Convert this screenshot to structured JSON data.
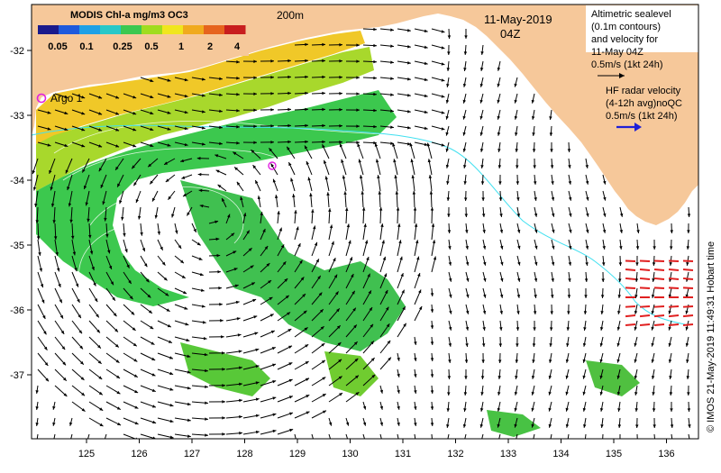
{
  "colorbar": {
    "title": "MODIS Chl-a mg/m3 OC3",
    "ticks": [
      "0.05",
      "0.1",
      "0.25",
      "0.5",
      "1",
      "2",
      "4"
    ],
    "colors": [
      "#1a1a8c",
      "#1e5adc",
      "#1ea0e6",
      "#28c8c8",
      "#3cc850",
      "#a0dc1e",
      "#f0e61e",
      "#f0aa1e",
      "#e6641e",
      "#c81e1e"
    ]
  },
  "depth_label": "200m",
  "date_label": "11-May-2019",
  "time_label": "04Z",
  "altimetry_legend": {
    "lines": [
      "Altimetric sealevel",
      "(0.1m contours)",
      "and velocity for",
      "11-May 04Z",
      "0.5m/s (1kt 24h)"
    ]
  },
  "hf_legend": {
    "lines": [
      "HF radar velocity",
      "(4-12h avg)noQC",
      "0.5m/s (1kt 24h)"
    ],
    "arrow_color": "#1f1fd6"
  },
  "argo_label": "Argo 1",
  "axes": {
    "x_ticks": [
      "125",
      "126",
      "127",
      "128",
      "129",
      "130",
      "131",
      "132",
      "133",
      "134",
      "135",
      "136"
    ],
    "y_ticks": [
      "-32",
      "-33",
      "-34",
      "-35",
      "-36",
      "-37"
    ]
  },
  "credit": "© IMOS 21-May-2019 11:49:31 Hobart time",
  "colors": {
    "land": "#f6c89a",
    "arrow": "#000000",
    "hf_arrow": "#e02020",
    "shelf_line": "#40e0f0",
    "argo_marker": "#e020e0"
  }
}
